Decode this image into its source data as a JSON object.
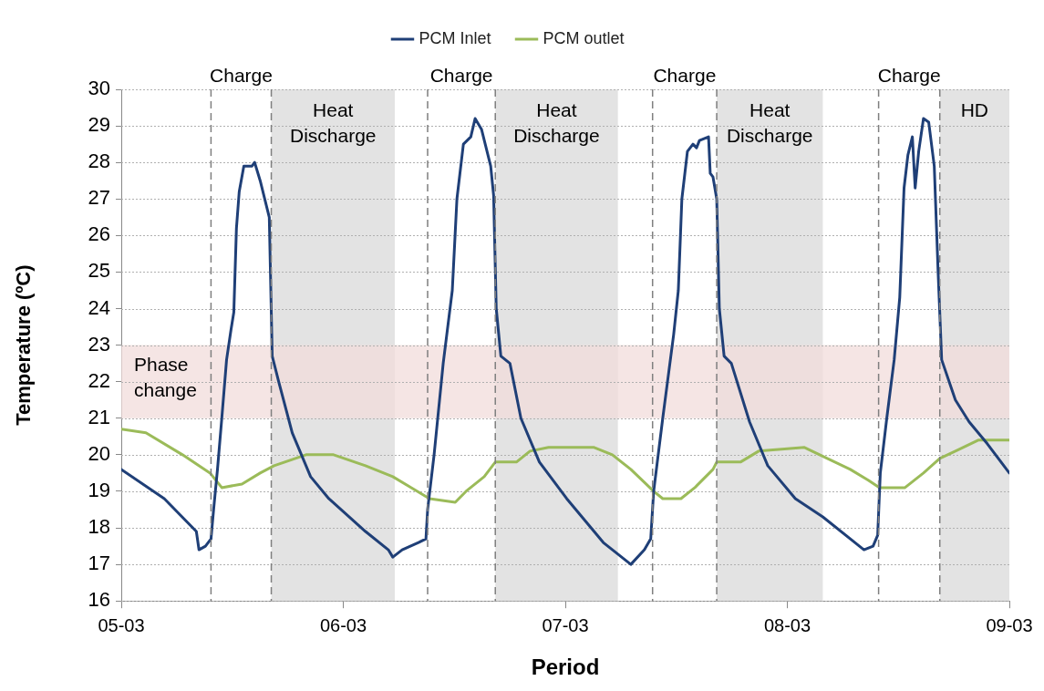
{
  "chart_data": {
    "type": "line",
    "xlabel": "Period",
    "ylabel": "Temperature (ºC)",
    "xlim": [
      "--03-05",
      "--03-09"
    ],
    "xticks": [
      {
        "value": "--03-05",
        "label": "05-03"
      },
      {
        "value": "--03-06",
        "label": "06-03"
      },
      {
        "value": "--03-07",
        "label": "07-03"
      },
      {
        "value": "--03-08",
        "label": "08-03"
      },
      {
        "value": "--03-09",
        "label": "09-03"
      }
    ],
    "ylim": [
      16,
      30
    ],
    "yticks": [
      16,
      17,
      18,
      19,
      20,
      21,
      22,
      23,
      24,
      25,
      26,
      27,
      28,
      29,
      30
    ],
    "grid": "y",
    "legend": "top",
    "marker": "none",
    "line_style": "solid",
    "series": [
      {
        "name": "PCM Inlet",
        "color": "#1f3f77",
        "x": [
          "--03-05T00:00",
          "--03-05T04:39",
          "--03-05T08:07",
          "--03-05T08:24",
          "--03-05T09:06",
          "--03-05T09:42",
          "--03-05T09:59",
          "--03-05T10:24",
          "--03-05T10:52",
          "--03-05T11:23",
          "--03-05T11:51",
          "--03-05T12:10",
          "--03-05T12:27",
          "--03-05T12:45",
          "--03-05T13:15",
          "--03-05T14:08",
          "--03-05T14:25",
          "--03-05T15:01",
          "--03-05T16:00",
          "--03-05T16:19",
          "--03-05T17:01",
          "--03-05T18:29",
          "--03-05T20:28",
          "--03-05T22:26",
          "--03-06T02:24",
          "--03-06T04:52",
          "--03-06T05:21",
          "--03-06T06:22",
          "--03-06T08:08",
          "--03-06T08:56",
          "--03-06T09:07",
          "--03-06T09:49",
          "--03-06T10:48",
          "--03-06T11:47",
          "--03-06T12:17",
          "--03-06T12:59",
          "--03-06T13:47",
          "--03-06T14:15",
          "--03-06T14:57",
          "--03-06T15:56",
          "--03-06T16:15",
          "--03-06T16:32",
          "--03-06T17:02",
          "--03-06T18:01",
          "--03-06T19:12",
          "--03-06T21:12",
          "--03-07T00:09",
          "--03-07T04:06",
          "--03-07T07:05",
          "--03-07T08:33",
          "--03-07T09:14",
          "--03-07T09:33",
          "--03-07T10:32",
          "--03-07T11:43",
          "--03-07T12:13",
          "--03-07T12:36",
          "--03-07T13:12",
          "--03-07T13:48",
          "--03-07T14:11",
          "--03-07T14:30",
          "--03-07T15:29",
          "--03-07T15:40",
          "--03-07T15:58",
          "--03-07T16:22",
          "--03-07T16:39",
          "--03-07T17:10",
          "--03-07T17:57",
          "--03-07T19:55",
          "--03-07T21:53",
          "--03-08T00:52",
          "--03-08T03:50",
          "--03-08T07:18",
          "--03-08T08:17",
          "--03-08T09:16",
          "--03-08T09:46",
          "--03-08T10:03",
          "--03-08T10:45",
          "--03-08T11:33",
          "--03-08T12:09",
          "--03-08T12:37",
          "--03-08T13:02",
          "--03-08T13:31",
          "--03-08T13:49",
          "--03-08T14:12",
          "--03-08T14:43",
          "--03-08T15:17",
          "--03-08T15:53",
          "--03-08T16:18",
          "--03-08T16:41",
          "--03-08T18:10",
          "--03-08T19:39",
          "--03-08T21:37",
          "--03-09T00:00"
        ],
        "values": [
          19.6,
          18.8,
          17.9,
          17.4,
          17.5,
          17.7,
          18.5,
          19.6,
          21,
          22.6,
          23.4,
          23.9,
          26.2,
          27.2,
          27.9,
          27.9,
          28,
          27.5,
          26.5,
          22.7,
          22,
          20.6,
          19.4,
          18.8,
          17.9,
          17.4,
          17.2,
          17.4,
          17.6,
          17.7,
          18.5,
          20,
          22.5,
          24.5,
          27,
          28.5,
          28.7,
          29.2,
          28.9,
          27.9,
          27.1,
          24,
          22.7,
          22.5,
          21,
          19.8,
          18.8,
          17.6,
          17,
          17.4,
          17.7,
          19,
          21,
          23.3,
          24.5,
          27,
          28.3,
          28.5,
          28.4,
          28.6,
          28.7,
          27.7,
          27.6,
          27,
          24,
          22.7,
          22.5,
          20.9,
          19.7,
          18.8,
          18.3,
          17.6,
          17.4,
          17.5,
          17.8,
          19.5,
          21,
          22.6,
          24.3,
          27.3,
          28.2,
          28.7,
          27.3,
          28.3,
          29.2,
          29.1,
          27.9,
          25,
          22.6,
          21.5,
          20.9,
          20.3,
          19.5
        ]
      },
      {
        "name": "PCM outlet",
        "color": "#9bbb59",
        "x": [
          "--03-05T00:00",
          "--03-05T02:40",
          "--03-05T06:37",
          "--03-05T09:36",
          "--03-05T10:52",
          "--03-05T13:03",
          "--03-05T15:01",
          "--03-05T16:31",
          "--03-05T19:58",
          "--03-05T22:57",
          "--03-06T02:24",
          "--03-06T05:21",
          "--03-06T07:21",
          "--03-06T09:19",
          "--03-06T12:06",
          "--03-06T13:16",
          "--03-06T15:14",
          "--03-06T16:26",
          "--03-06T18:43",
          "--03-06T20:11",
          "--03-06T22:11",
          "--03-07T03:07",
          "--03-07T05:05",
          "--03-07T07:05",
          "--03-07T09:33",
          "--03-07T10:32",
          "--03-07T12:30",
          "--03-07T14:00",
          "--03-07T15:58",
          "--03-07T16:22",
          "--03-07T18:56",
          "--03-07T20:54",
          "--03-08T01:51",
          "--03-08T04:19",
          "--03-08T06:48",
          "--03-08T08:47",
          "--03-08T09:58",
          "--03-08T12:43",
          "--03-08T14:43",
          "--03-08T16:29",
          "--03-08T18:10",
          "--03-08T20:38",
          "--03-09T00:00"
        ],
        "values": [
          20.7,
          20.6,
          20,
          19.5,
          19.1,
          19.2,
          19.5,
          19.7,
          20,
          20,
          19.7,
          19.4,
          19.1,
          18.8,
          18.7,
          19,
          19.4,
          19.8,
          19.8,
          20.1,
          20.2,
          20.2,
          20,
          19.6,
          19,
          18.8,
          18.8,
          19.1,
          19.6,
          19.8,
          19.8,
          20.1,
          20.2,
          19.9,
          19.6,
          19.3,
          19.1,
          19.1,
          19.5,
          19.9,
          20.1,
          20.4,
          20.4
        ]
      }
    ],
    "bands": [
      {
        "axis": "x",
        "from": "--03-05T16:13",
        "to": "--03-06T05:34",
        "label": "Heat Discharge",
        "color": "#e3e3e3"
      },
      {
        "axis": "x",
        "from": "--03-06T16:26",
        "to": "--03-07T05:41",
        "label": "Heat Discharge",
        "color": "#e3e3e3"
      },
      {
        "axis": "x",
        "from": "--03-07T16:22",
        "to": "--03-08T03:50",
        "label": "Heat Discharge",
        "color": "#e3e3e3"
      },
      {
        "axis": "x",
        "from": "--03-08T16:29",
        "to": "--03-09T00:00",
        "label": "HD",
        "color": "#e3e3e3"
      },
      {
        "axis": "y",
        "from": 21,
        "to": 23,
        "label": "Phase change",
        "color": "#f2dcdb"
      }
    ],
    "ref_lines": [
      {
        "axis": "x",
        "value": "--03-05T09:42",
        "label": null,
        "color": "#7f7f7f",
        "line_style": "dashed"
      },
      {
        "axis": "x",
        "value": "--03-05T16:13",
        "label": null,
        "color": "#7f7f7f",
        "line_style": "dashed"
      },
      {
        "axis": "x",
        "value": "--03-06T09:07",
        "label": null,
        "color": "#7f7f7f",
        "line_style": "dashed"
      },
      {
        "axis": "x",
        "value": "--03-06T16:26",
        "label": null,
        "color": "#7f7f7f",
        "line_style": "dashed"
      },
      {
        "axis": "x",
        "value": "--03-07T09:26",
        "label": null,
        "color": "#7f7f7f",
        "line_style": "dashed"
      },
      {
        "axis": "x",
        "value": "--03-07T16:22",
        "label": null,
        "color": "#7f7f7f",
        "line_style": "dashed"
      },
      {
        "axis": "x",
        "value": "--03-08T09:52",
        "label": null,
        "color": "#7f7f7f",
        "line_style": "dashed"
      },
      {
        "axis": "x",
        "value": "--03-08T16:29",
        "label": null,
        "color": "#7f7f7f",
        "line_style": "dashed"
      }
    ],
    "annotations": [
      "Charge",
      "Charge",
      "Charge",
      "Charge"
    ]
  }
}
